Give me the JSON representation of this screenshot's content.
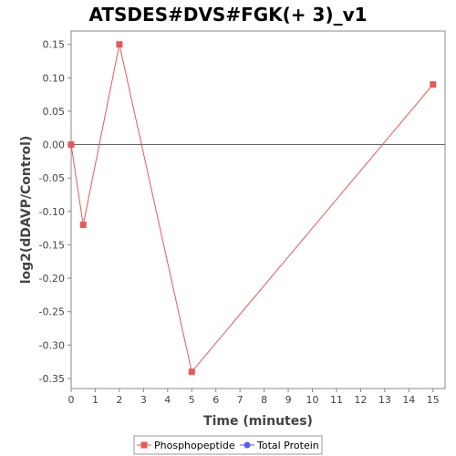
{
  "chart_data": {
    "type": "line",
    "title": "ATSDES#DVS#FGK(+ 3)_v1",
    "xlabel": "Time (minutes)",
    "ylabel": "log2(dDAVP/Control)",
    "xlim": [
      0,
      15.5
    ],
    "ylim": [
      -0.365,
      0.17
    ],
    "x_ticks": [
      0,
      1,
      2,
      3,
      4,
      5,
      6,
      7,
      8,
      9,
      10,
      11,
      12,
      13,
      14,
      15
    ],
    "x_tick_labels": [
      "0",
      "1",
      "2",
      "3",
      "4",
      "5",
      "6",
      "7",
      "8",
      "9",
      "10",
      "11",
      "12",
      "13",
      "14",
      "15"
    ],
    "y_ticks": [
      0.15,
      0.1,
      0.05,
      0.0,
      -0.05,
      -0.1,
      -0.15,
      -0.2,
      -0.25,
      -0.3,
      -0.35
    ],
    "y_tick_labels": [
      "0.15",
      "0.10",
      "0.05",
      "0.00",
      "-0.05",
      "-0.10",
      "-0.15",
      "-0.20",
      "-0.25",
      "-0.30",
      "-0.35"
    ],
    "zero_line": true,
    "grid": false,
    "legend_position": "bottom",
    "series": [
      {
        "name": "Phosphopeptide",
        "color": "#e8585a",
        "marker": "square",
        "x": [
          0,
          0.5,
          2,
          5,
          15
        ],
        "y": [
          0.0,
          -0.12,
          0.15,
          -0.34,
          0.09
        ]
      },
      {
        "name": "Total Protein",
        "color": "#5b5bf0",
        "marker": "circle",
        "x": [],
        "y": []
      }
    ]
  }
}
